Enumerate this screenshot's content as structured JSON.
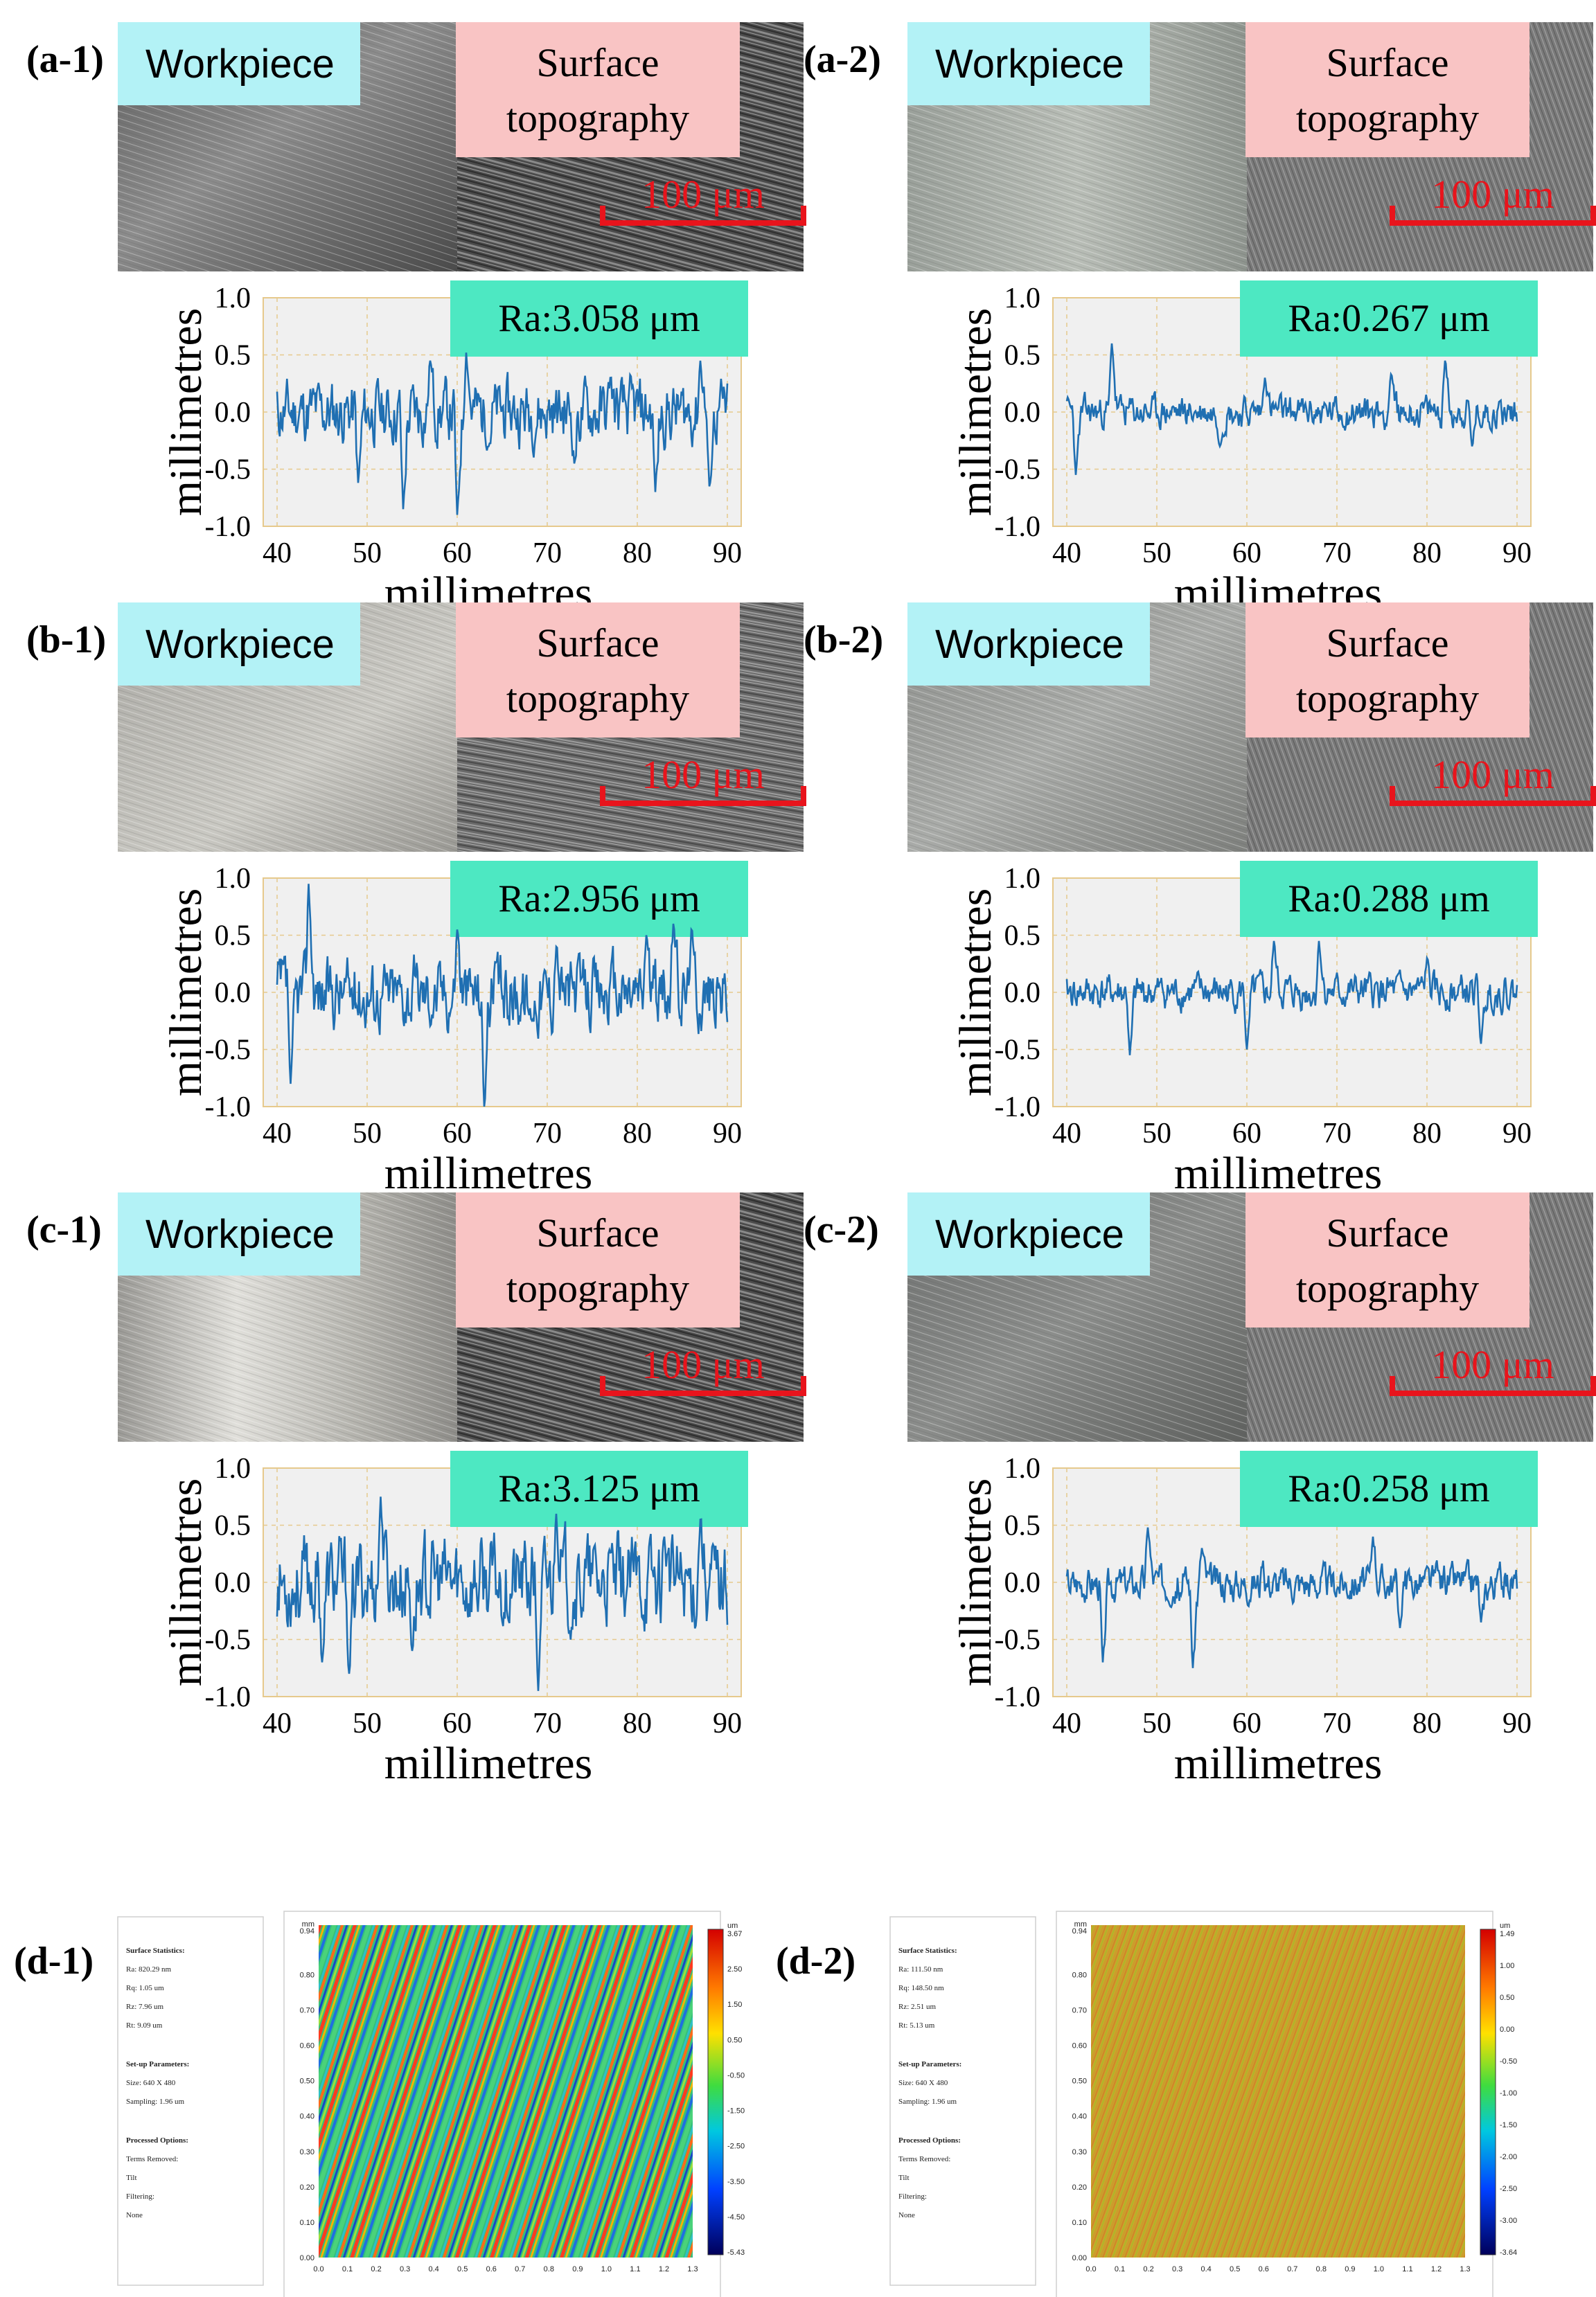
{
  "figure": {
    "panels": [
      {
        "label": "(a-1)",
        "ra": "Ra:3.058 μm",
        "seed": 11,
        "amp": 0.2,
        "spikes": [
          [
            49,
            -0.62
          ],
          [
            54,
            -0.85
          ],
          [
            60,
            -0.9
          ],
          [
            63.5,
            -0.3
          ],
          [
            73,
            -0.45
          ],
          [
            77,
            0.3
          ],
          [
            82,
            -0.7
          ],
          [
            88,
            -0.65
          ],
          [
            61,
            0.52
          ],
          [
            87,
            0.45
          ],
          [
            57,
            0.45
          ]
        ],
        "yticks": [
          "1.0",
          "0.5",
          "0.0",
          "-0.5",
          "-1.0"
        ],
        "xticks": [
          "40",
          "50",
          "60",
          "70",
          "80",
          "90"
        ]
      },
      {
        "label": "(a-2)",
        "ra": "Ra:0.267 μm",
        "seed": 23,
        "amp": 0.1,
        "spikes": [
          [
            41,
            -0.55
          ],
          [
            45,
            0.6
          ],
          [
            57,
            -0.3
          ],
          [
            62,
            0.3
          ],
          [
            76,
            0.33
          ],
          [
            82,
            0.45
          ],
          [
            85,
            -0.3
          ]
        ],
        "yticks": [
          "1.0",
          "0.5",
          "0.0",
          "-0.5",
          "-1.0"
        ],
        "xticks": [
          "40",
          "50",
          "60",
          "70",
          "80",
          "90"
        ]
      },
      {
        "label": "(b-1)",
        "ra": "Ra:2.956 μm",
        "seed": 37,
        "amp": 0.22,
        "spikes": [
          [
            43.5,
            0.95
          ],
          [
            41.5,
            -0.8
          ],
          [
            63,
            -1.0
          ],
          [
            60,
            0.55
          ],
          [
            71,
            0.4
          ],
          [
            81,
            0.5
          ],
          [
            84,
            0.6
          ],
          [
            86,
            0.55
          ],
          [
            68,
            -0.2
          ]
        ],
        "yticks": [
          "1.0",
          "0.5",
          "0.0",
          "-0.5",
          "-1.0"
        ],
        "xticks": [
          "40",
          "50",
          "60",
          "70",
          "80",
          "90"
        ]
      },
      {
        "label": "(b-2)",
        "ra": "Ra:0.288 μm",
        "seed": 41,
        "amp": 0.11,
        "spikes": [
          [
            47,
            -0.55
          ],
          [
            60,
            -0.5
          ],
          [
            63,
            0.45
          ],
          [
            68,
            0.45
          ],
          [
            86,
            -0.45
          ],
          [
            80,
            0.3
          ]
        ],
        "yticks": [
          "1.0",
          "0.5",
          "0.0",
          "-0.5",
          "-1.0"
        ],
        "xticks": [
          "40",
          "50",
          "60",
          "70",
          "80",
          "90"
        ]
      },
      {
        "label": "(c-1)",
        "ra": "Ra:3.125 μm",
        "seed": 53,
        "amp": 0.28,
        "spikes": [
          [
            51.5,
            0.75
          ],
          [
            45,
            -0.7
          ],
          [
            48,
            -0.8
          ],
          [
            69,
            -0.95
          ],
          [
            55,
            -0.6
          ],
          [
            71,
            0.6
          ],
          [
            83,
            0.4
          ],
          [
            87,
            0.55
          ]
        ],
        "yticks": [
          "1.0",
          "0.5",
          "0.0",
          "-0.5",
          "-1.0"
        ],
        "xticks": [
          "40",
          "50",
          "60",
          "70",
          "80",
          "90"
        ]
      },
      {
        "label": "(c-2)",
        "ra": "Ra:0.258 μm",
        "seed": 67,
        "amp": 0.11,
        "spikes": [
          [
            44,
            -0.7
          ],
          [
            49,
            0.48
          ],
          [
            54,
            -0.75
          ],
          [
            55,
            0.3
          ],
          [
            74,
            0.4
          ],
          [
            86,
            -0.35
          ],
          [
            77,
            -0.4
          ]
        ],
        "yticks": [
          "1.0",
          "0.5",
          "0.0",
          "-0.5",
          "-1.0"
        ],
        "xticks": [
          "40",
          "50",
          "60",
          "70",
          "80",
          "90"
        ]
      }
    ],
    "workpiece_label": "Workpiece",
    "surface_label_1": "Surface",
    "surface_label_2": "topography",
    "scale_bar": "100 μm",
    "y_axis_title": "millimetres",
    "x_axis_title": "millimetres",
    "d_panels": [
      {
        "label": "(d-1)",
        "heading1": "Surface Statistics:",
        "stats": [
          "Ra: 820.29 nm",
          "Rq: 1.05 um",
          "Rz: 7.96 um",
          "Rt: 9.09 um"
        ],
        "heading2": "Set-up Parameters:",
        "setup": [
          "Size: 640 X 480",
          "Sampling: 1.96 um"
        ],
        "heading3": "Processed Options:",
        "options": [
          "Terms Removed:",
          "Tilt",
          "Filtering:",
          "None"
        ],
        "cbar_unit": "um",
        "cbar_ticks": [
          "3.67",
          "2.50",
          "1.50",
          "0.50",
          "-0.50",
          "-1.50",
          "-2.50",
          "-3.50",
          "-4.50",
          "-5.43"
        ],
        "map_unit": "mm",
        "y_ticks": [
          "0.94",
          "0.80",
          "0.70",
          "0.60",
          "0.50",
          "0.40",
          "0.30",
          "0.20",
          "0.10",
          "0.00"
        ],
        "x_ticks": [
          "0.0",
          "0.1",
          "0.2",
          "0.3",
          "0.4",
          "0.5",
          "0.6",
          "0.7",
          "0.8",
          "0.9",
          "1.0",
          "1.1",
          "1.2",
          "1.3"
        ]
      },
      {
        "label": "(d-2)",
        "heading1": "Surface Statistics:",
        "stats": [
          "Ra: 111.50 nm",
          "Rq: 148.50 nm",
          "Rz: 2.51 um",
          "Rt: 5.13 um"
        ],
        "heading2": "Set-up Parameters:",
        "setup": [
          "Size: 640 X 480",
          "Sampling: 1.96 um"
        ],
        "heading3": "Processed Options:",
        "options": [
          "Terms Removed:",
          "Tilt",
          "Filtering:",
          "None"
        ],
        "cbar_unit": "um",
        "cbar_ticks": [
          "1.49",
          "1.00",
          "0.50",
          "0.00",
          "-0.50",
          "-1.00",
          "-1.50",
          "-2.00",
          "-2.50",
          "-3.00",
          "-3.64"
        ],
        "map_unit": "mm",
        "y_ticks": [
          "0.94",
          "0.80",
          "0.70",
          "0.60",
          "0.50",
          "0.40",
          "0.30",
          "0.20",
          "0.10",
          "0.00"
        ],
        "x_ticks": [
          "0.0",
          "0.1",
          "0.2",
          "0.3",
          "0.4",
          "0.5",
          "0.6",
          "0.7",
          "0.8",
          "0.9",
          "1.0",
          "1.1",
          "1.2",
          "1.3"
        ]
      }
    ],
    "colors": {
      "tag_blue": "#b3f2f6",
      "tag_pink": "#f9c4c4",
      "ra_green": "#4de8c2",
      "trace": "#1f6fb2",
      "scale_red": "#e8141c",
      "plot_bg": "#f0f0f0",
      "grid": "#e6c98c"
    }
  }
}
